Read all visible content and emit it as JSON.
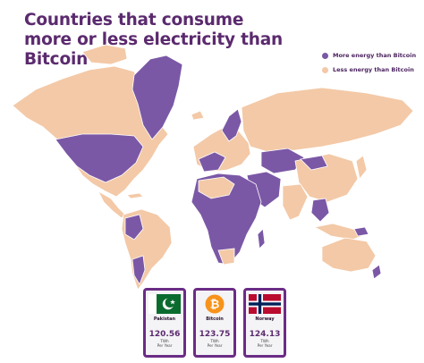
{
  "header": {
    "title": "Countries that consume more or less electricity than Bitcoin"
  },
  "legend": [
    {
      "label": "More energy than Bitcoin",
      "color": "#7b58a6"
    },
    {
      "label": "Less energy than Bitcoin",
      "color": "#f3c9a7"
    }
  ],
  "colors": {
    "more": "#7b58a6",
    "less": "#f3c9a7",
    "title": "#5b2a6e",
    "card_border": "#6b2c86"
  },
  "cards": [
    {
      "name": "Pakistan",
      "value": "120.56",
      "unit_line1": "TWh",
      "unit_line2": "Per Year",
      "flag": "pakistan-flag"
    },
    {
      "name": "Bitcoin",
      "value": "123.75",
      "unit_line1": "TWh",
      "unit_line2": "Per Year",
      "flag": "bitcoin-logo"
    },
    {
      "name": "Norway",
      "value": "124.13",
      "unit_line1": "TWh",
      "unit_line2": "Per Year",
      "flag": "norway-flag"
    }
  ]
}
